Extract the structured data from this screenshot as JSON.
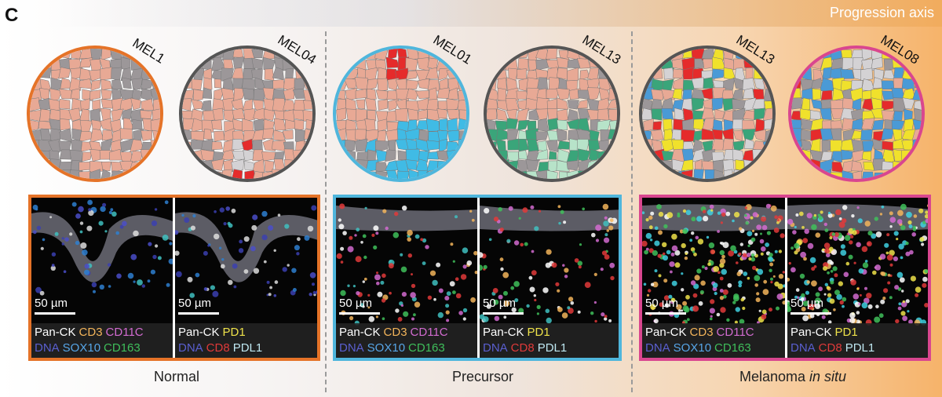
{
  "figure": {
    "panel_letter": "C",
    "axis_label": "Progression axis",
    "groups": [
      {
        "label": "Normal",
        "label_suffix": ""
      },
      {
        "label": "Precursor",
        "label_suffix": ""
      },
      {
        "label": "Melanoma ",
        "label_suffix": "in situ"
      }
    ],
    "samples": [
      "MEL1",
      "MEL04",
      "MEL01",
      "MEL13",
      "MEL13",
      "MEL08"
    ],
    "colors": {
      "normal_frame": "#e57328",
      "precursor_frame": "#4fb6dc",
      "melanoma_frame": "#d9468f",
      "tumor_salmon": "#e8a995",
      "gray": "#9c9799",
      "red": "#e52b2b",
      "blue": "#4a9ad6",
      "cyan": "#40bbe5",
      "green": "#3aa57a",
      "mint": "#b7e3c9",
      "yellow": "#f0e12c",
      "light": "#d4d2d4"
    },
    "images": {
      "scale_bar": "50 µm",
      "legend_left": {
        "line1": [
          [
            "Pan-CK",
            "#ffffff"
          ],
          [
            "CD3",
            "#f2b45a"
          ],
          [
            "CD11C",
            "#d26bd0"
          ]
        ],
        "line2": [
          [
            "DNA",
            "#5a5fd0"
          ],
          [
            "SOX10",
            "#57a6e8"
          ],
          [
            "CD163",
            "#3fbf5b"
          ]
        ]
      },
      "legend_right": {
        "line1": [
          [
            "Pan-CK",
            "#ffffff"
          ],
          [
            "PD1",
            "#eee24a"
          ]
        ],
        "line2": [
          [
            "DNA",
            "#5a5fd0"
          ],
          [
            "CD8",
            "#e03a3a"
          ],
          [
            "PDL1",
            "#bfe8f2"
          ]
        ]
      }
    }
  }
}
